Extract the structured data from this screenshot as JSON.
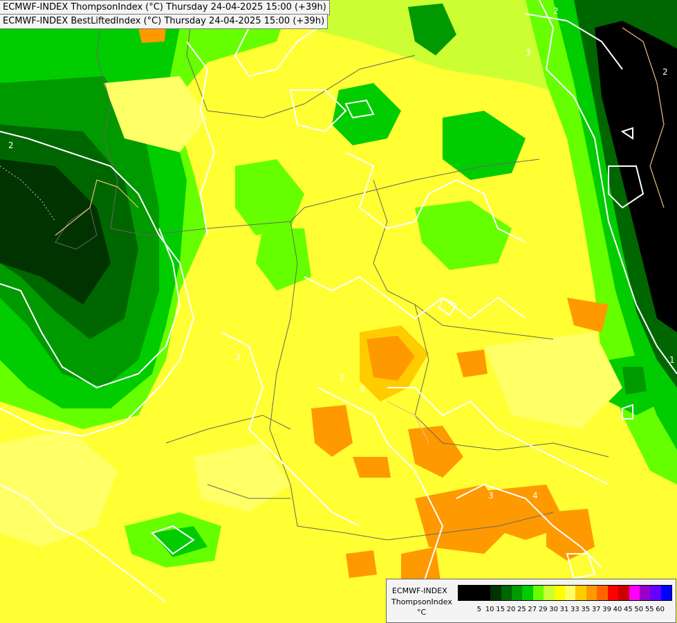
{
  "header": {
    "line1": "ECMWF-INDEX ThompsonIndex (°C) Thursday 24-04-2025 15:00 (+39h)",
    "line2": "ECMWF-INDEX BestLiftedIndex (°C) Thursday 24-04-2025 15:00 (+39h)"
  },
  "legend": {
    "title": "ECMWF-INDEX",
    "subtitle": "ThompsonIndex",
    "unit": "°C",
    "ticks": [
      "5",
      "10",
      "15",
      "20",
      "25",
      "27",
      "29",
      "30",
      "31",
      "33",
      "35",
      "37",
      "39",
      "40",
      "45",
      "50",
      "55",
      "60"
    ],
    "colors": [
      "#000000",
      "#000000",
      "#000000",
      "#003300",
      "#006600",
      "#009900",
      "#00cc00",
      "#66ff00",
      "#ccff33",
      "#ffff00",
      "#ffff66",
      "#ffcc00",
      "#ff9900",
      "#ff6600",
      "#ff0000",
      "#cc0000",
      "#ff00ff",
      "#9900cc",
      "#6600ff",
      "#0000ff"
    ]
  },
  "contour_labels": [
    "2",
    "3",
    "2",
    "3",
    "3",
    "3",
    "4",
    "3",
    "1",
    "2"
  ]
}
